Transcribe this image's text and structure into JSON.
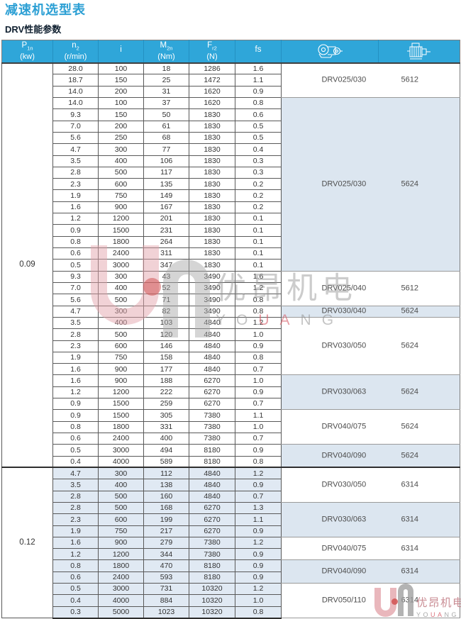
{
  "page": {
    "title": "减速机选型表",
    "subtitle": "DRV性能参数"
  },
  "colors": {
    "accent": "#2b9fd4",
    "header_bg": "#2fa6d9",
    "group_shade": "#dce6f0",
    "section_shade": "#e0e9f3",
    "border_dark": "#4f4f4f",
    "wm_pink": "#e3a3aa",
    "wm_gray": "#9c9c9c",
    "wm_red": "#cf4a4a"
  },
  "watermark": {
    "cn": "优昂机电",
    "en": "YOUANG"
  },
  "table": {
    "headers": [
      {
        "base": "P",
        "sub": "1n",
        "unit": "(kw)"
      },
      {
        "base": "n",
        "sub": "2",
        "unit": "(r/min)"
      },
      {
        "base": "i",
        "sub": "",
        "unit": ""
      },
      {
        "base": "M",
        "sub": "2n",
        "unit": "(Nm)"
      },
      {
        "base": "F",
        "sub": "r2",
        "unit": "(N)"
      },
      {
        "base": "fs",
        "sub": "",
        "unit": ""
      },
      {
        "icon": "gearbox-icon"
      },
      {
        "icon": "motor-icon"
      }
    ],
    "columns_meaning": [
      "power_kw",
      "output_speed",
      "ratio",
      "torque_Nm",
      "radial_force_N",
      "service_factor",
      "gear_unit_model",
      "motor_frame"
    ],
    "sections": [
      {
        "power": "0.09",
        "groups": [
          {
            "model": "DRV025/030",
            "motor": "5612",
            "shaded": false,
            "rows": [
              [
                "28.0",
                "100",
                "18",
                "1286",
                "1.6"
              ],
              [
                "18.7",
                "150",
                "25",
                "1472",
                "1.1"
              ],
              [
                "14.0",
                "200",
                "31",
                "1620",
                "0.9"
              ]
            ]
          },
          {
            "model": "DRV025/030",
            "motor": "5624",
            "shaded": true,
            "rows": [
              [
                "14.0",
                "100",
                "37",
                "1620",
                "0.8"
              ],
              [
                "9.3",
                "150",
                "50",
                "1830",
                "0.6"
              ],
              [
                "7.0",
                "200",
                "61",
                "1830",
                "0.5"
              ],
              [
                "5.6",
                "250",
                "68",
                "1830",
                "0.5"
              ],
              [
                "4.7",
                "300",
                "77",
                "1830",
                "0.4"
              ],
              [
                "3.5",
                "400",
                "106",
                "1830",
                "0.3"
              ],
              [
                "2.8",
                "500",
                "117",
                "1830",
                "0.3"
              ],
              [
                "2.3",
                "600",
                "135",
                "1830",
                "0.2"
              ],
              [
                "1.9",
                "750",
                "149",
                "1830",
                "0.2"
              ],
              [
                "1.6",
                "900",
                "167",
                "1830",
                "0.2"
              ],
              [
                "1.2",
                "1200",
                "201",
                "1830",
                "0.1"
              ],
              [
                "0.9",
                "1500",
                "231",
                "1830",
                "0.1"
              ],
              [
                "0.8",
                "1800",
                "264",
                "1830",
                "0.1"
              ],
              [
                "0.6",
                "2400",
                "311",
                "1830",
                "0.1"
              ],
              [
                "0.5",
                "3000",
                "347",
                "1830",
                "0.1"
              ]
            ]
          },
          {
            "model": "DRV025/040",
            "motor": "5612",
            "shaded": false,
            "rows": [
              [
                "9.3",
                "300",
                "43",
                "3490",
                "1.6"
              ],
              [
                "7.0",
                "400",
                "52",
                "3490",
                "1.2"
              ],
              [
                "5.6",
                "500",
                "71",
                "3490",
                "0.8"
              ]
            ]
          },
          {
            "model": "DRV030/040",
            "motor": "5624",
            "shaded": true,
            "rows": [
              [
                "4.7",
                "300",
                "82",
                "3490",
                "0.8"
              ]
            ]
          },
          {
            "model": "DRV030/050",
            "motor": "5624",
            "shaded": false,
            "rows": [
              [
                "3.5",
                "400",
                "103",
                "4840",
                "1.2"
              ],
              [
                "2.8",
                "500",
                "120",
                "4840",
                "1.0"
              ],
              [
                "2.3",
                "600",
                "146",
                "4840",
                "0.9"
              ],
              [
                "1.9",
                "750",
                "158",
                "4840",
                "0.8"
              ],
              [
                "1.6",
                "900",
                "177",
                "4840",
                "0.7"
              ]
            ]
          },
          {
            "model": "DRV030/063",
            "motor": "5624",
            "shaded": true,
            "rows": [
              [
                "1.6",
                "900",
                "188",
                "6270",
                "1.0"
              ],
              [
                "1.2",
                "1200",
                "222",
                "6270",
                "0.9"
              ],
              [
                "0.9",
                "1500",
                "259",
                "6270",
                "0.7"
              ]
            ]
          },
          {
            "model": "DRV040/075",
            "motor": "5624",
            "shaded": false,
            "rows": [
              [
                "0.9",
                "1500",
                "305",
                "7380",
                "1.1"
              ],
              [
                "0.8",
                "1800",
                "331",
                "7380",
                "1.0"
              ],
              [
                "0.6",
                "2400",
                "400",
                "7380",
                "0.7"
              ]
            ]
          },
          {
            "model": "DRV040/090",
            "motor": "5624",
            "shaded": true,
            "rows": [
              [
                "0.5",
                "3000",
                "494",
                "8180",
                "0.9"
              ],
              [
                "0.4",
                "4000",
                "589",
                "8180",
                "0.8"
              ]
            ]
          }
        ]
      },
      {
        "power": "0.12",
        "groups": [
          {
            "model": "DRV030/050",
            "motor": "6314",
            "shaded": false,
            "rows": [
              [
                "4.7",
                "300",
                "112",
                "4840",
                "1.2"
              ],
              [
                "3.5",
                "400",
                "138",
                "4840",
                "0.9"
              ],
              [
                "2.8",
                "500",
                "160",
                "4840",
                "0.7"
              ]
            ]
          },
          {
            "model": "DRV030/063",
            "motor": "6314",
            "shaded": true,
            "rows": [
              [
                "2.8",
                "500",
                "168",
                "6270",
                "1.3"
              ],
              [
                "2.3",
                "600",
                "199",
                "6270",
                "1.1"
              ],
              [
                "1.9",
                "750",
                "217",
                "6270",
                "0.9"
              ]
            ]
          },
          {
            "model": "DRV040/075",
            "motor": "6314",
            "shaded": false,
            "rows": [
              [
                "1.6",
                "900",
                "279",
                "7380",
                "1.2"
              ],
              [
                "1.2",
                "1200",
                "344",
                "7380",
                "0.9"
              ]
            ]
          },
          {
            "model": "DRV040/090",
            "motor": "6314",
            "shaded": true,
            "rows": [
              [
                "0.8",
                "1800",
                "470",
                "8180",
                "0.9"
              ],
              [
                "0.6",
                "2400",
                "593",
                "8180",
                "0.9"
              ]
            ]
          },
          {
            "model": "DRV050/110",
            "motor": "6314",
            "shaded": false,
            "rows": [
              [
                "0.5",
                "3000",
                "731",
                "10320",
                "1.2"
              ],
              [
                "0.4",
                "4000",
                "884",
                "10320",
                "1.0"
              ],
              [
                "0.3",
                "5000",
                "1023",
                "10320",
                "0.8"
              ]
            ]
          }
        ]
      }
    ]
  }
}
